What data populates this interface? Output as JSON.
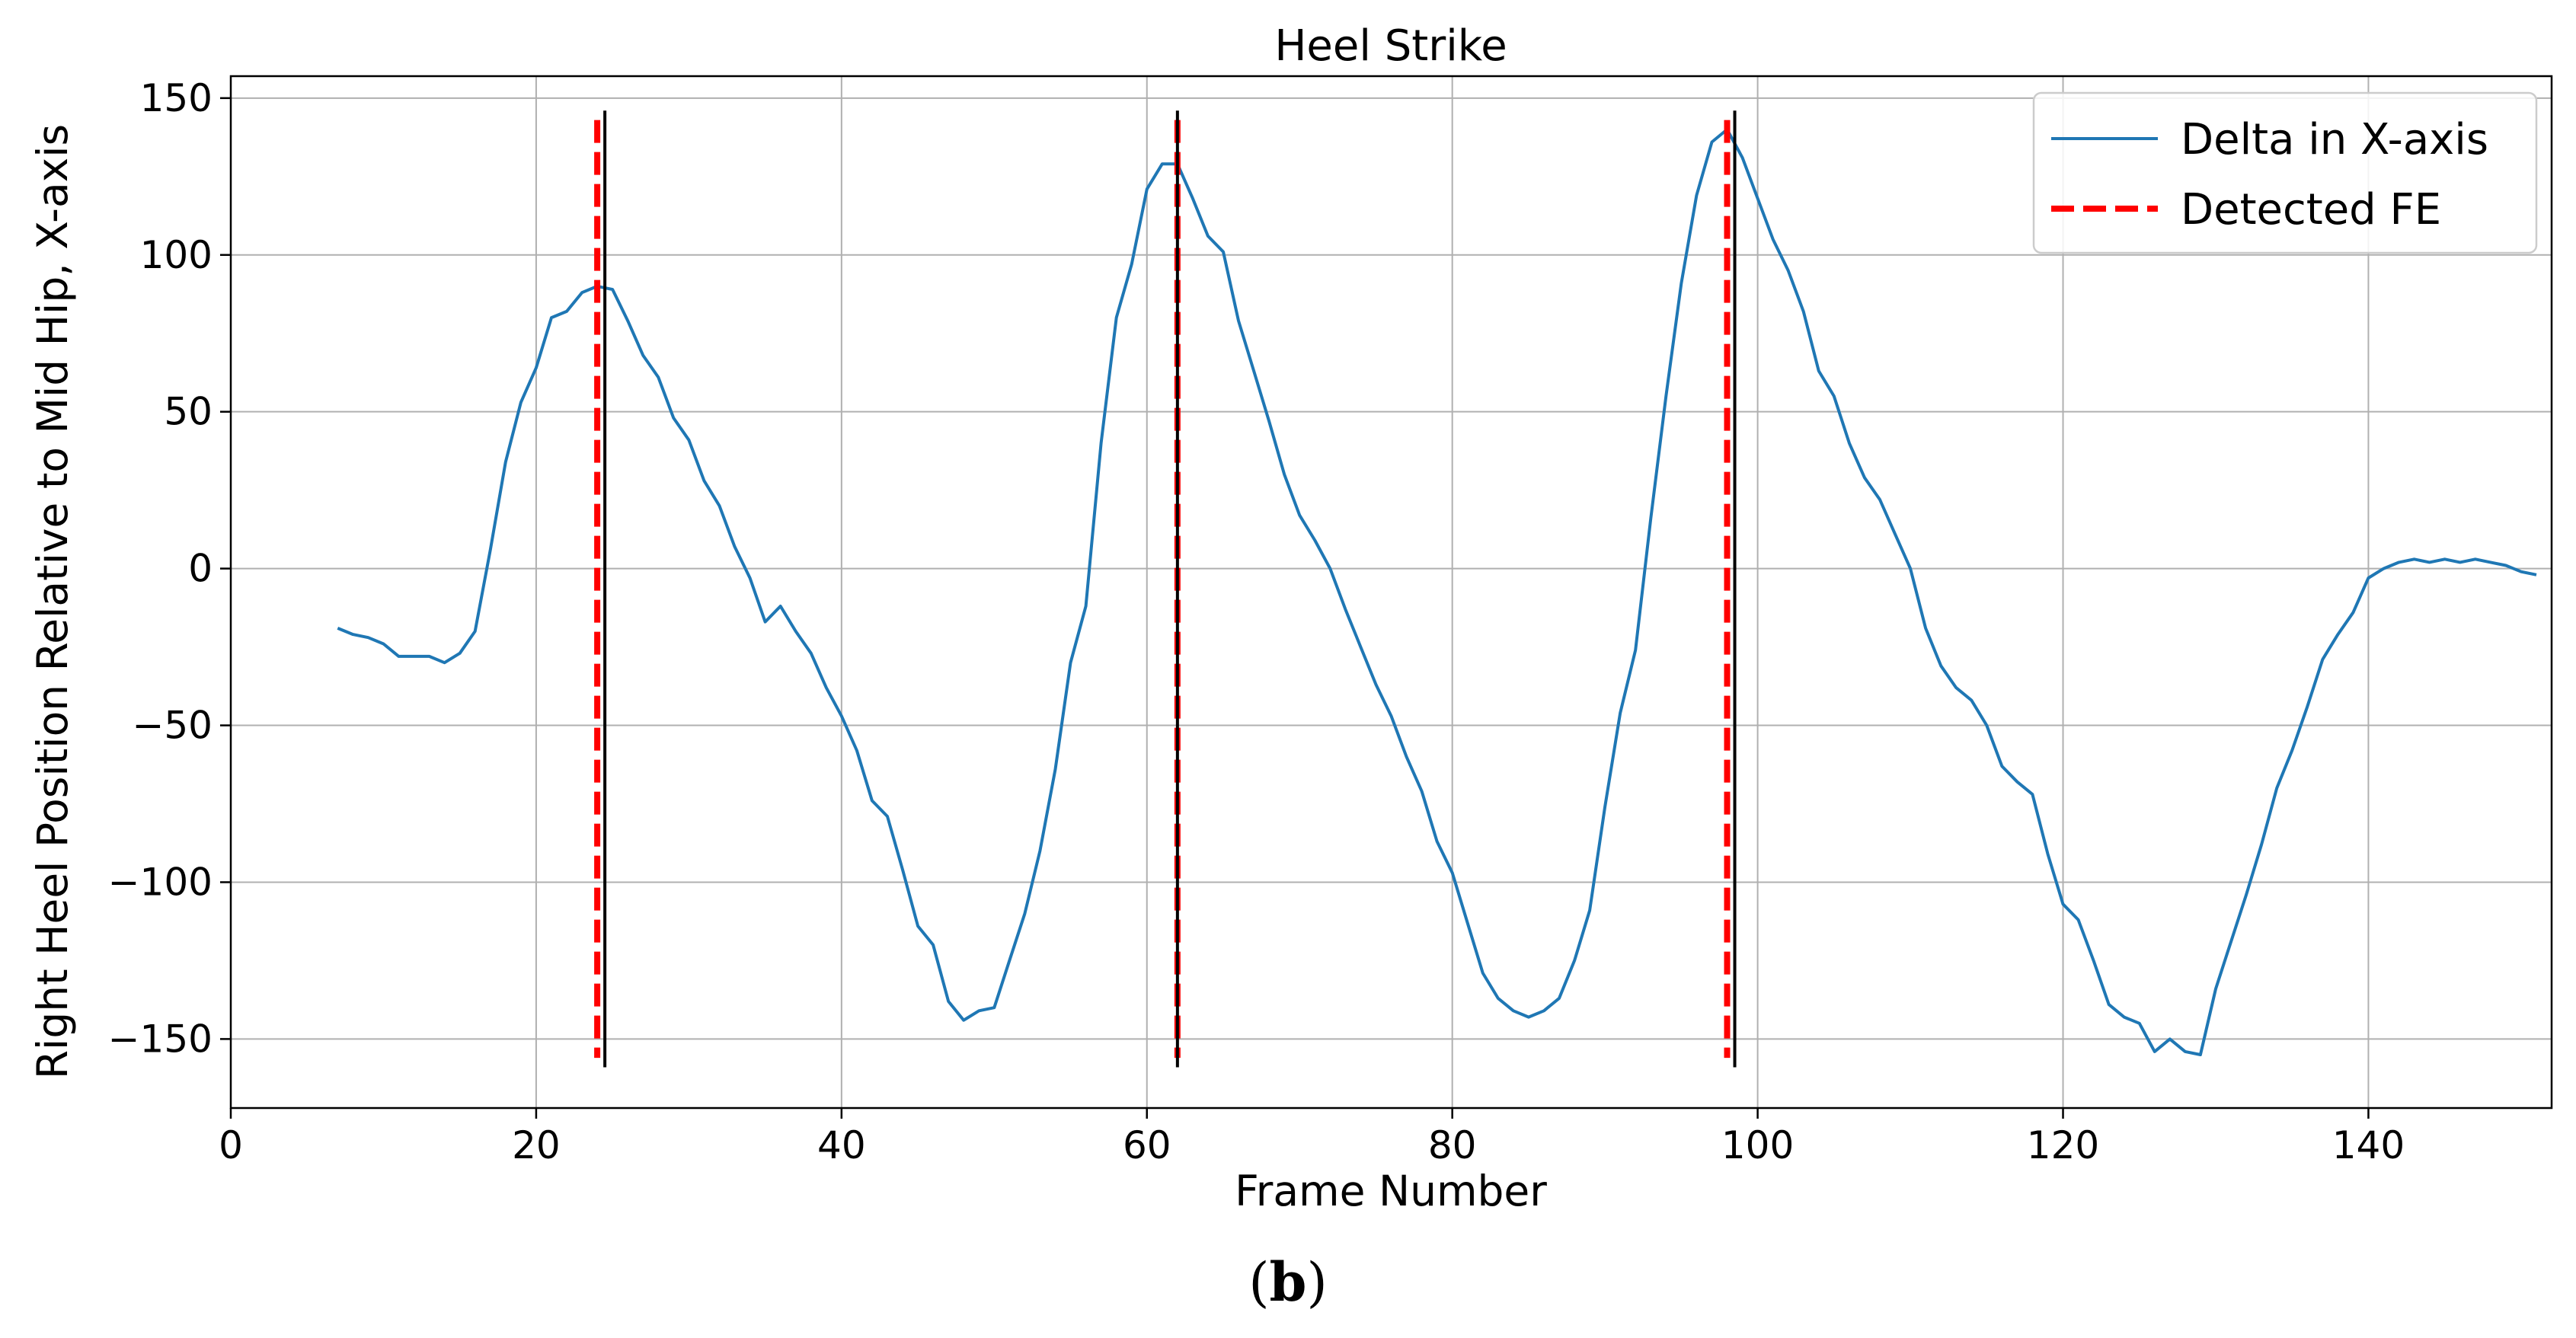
{
  "chart_data": {
    "type": "line",
    "title": "Heel Strike",
    "xlabel": "Frame Number",
    "ylabel": "Right Heel Position Relative to Mid Hip, X-axis",
    "caption_prefix": "(",
    "caption_letter": "b",
    "caption_suffix": ")",
    "xlim": [
      0,
      152
    ],
    "ylim": [
      -172,
      157
    ],
    "xticks": [
      0,
      20,
      40,
      60,
      80,
      100,
      120,
      140
    ],
    "yticks": [
      150,
      100,
      50,
      0,
      -50,
      -100,
      -150
    ],
    "ytick_labels": [
      "150",
      "100",
      "50",
      "0",
      "−50",
      "−100",
      "−150"
    ],
    "grid": true,
    "legend_placement": "top-right",
    "colors": {
      "series": "#1f77b4",
      "detected": "#ff0000",
      "reference": "#000000"
    },
    "series": [
      {
        "name": "Delta in X-axis",
        "x": [
          7,
          8,
          9,
          10,
          11,
          12,
          13,
          14,
          15,
          16,
          17,
          18,
          19,
          20,
          21,
          22,
          23,
          24,
          25,
          26,
          27,
          28,
          29,
          30,
          31,
          32,
          33,
          34,
          35,
          36,
          37,
          38,
          39,
          40,
          41,
          42,
          43,
          44,
          45,
          46,
          47,
          48,
          49,
          50,
          51,
          52,
          53,
          54,
          55,
          56,
          57,
          58,
          59,
          60,
          61,
          62,
          63,
          64,
          65,
          66,
          67,
          68,
          69,
          70,
          71,
          72,
          73,
          74,
          75,
          76,
          77,
          78,
          79,
          80,
          81,
          82,
          83,
          84,
          85,
          86,
          87,
          88,
          89,
          90,
          91,
          92,
          93,
          94,
          95,
          96,
          97,
          98,
          99,
          100,
          101,
          102,
          103,
          104,
          105,
          106,
          107,
          108,
          109,
          110,
          111,
          112,
          113,
          114,
          115,
          116,
          117,
          118,
          119,
          120,
          121,
          122,
          123,
          124,
          125,
          126,
          127,
          128,
          129,
          130,
          131,
          132,
          133,
          134,
          135,
          136,
          137,
          138,
          139,
          140,
          141,
          142,
          143,
          144,
          145,
          146,
          147,
          148,
          149,
          150,
          151
        ],
        "y": [
          -19,
          -21,
          -22,
          -24,
          -28,
          -28,
          -28,
          -30,
          -27,
          -20,
          6,
          34,
          53,
          64,
          80,
          82,
          88,
          90,
          89,
          79,
          68,
          61,
          48,
          41,
          28,
          20,
          7,
          -3,
          -17,
          -12,
          -20,
          -27,
          -38,
          -47,
          -58,
          -74,
          -79,
          -96,
          -114,
          -120,
          -138,
          -144,
          -141,
          -140,
          -125,
          -110,
          -90,
          -64,
          -30,
          -12,
          40,
          80,
          97,
          121,
          129,
          129,
          118,
          106,
          101,
          79,
          63,
          47,
          30,
          17,
          9,
          0,
          -13,
          -25,
          -37,
          -47,
          -60,
          -71,
          -87,
          -97,
          -113,
          -129,
          -137,
          -141,
          -143,
          -141,
          -137,
          -125,
          -109,
          -76,
          -46,
          -26,
          16,
          55,
          91,
          119,
          136,
          140,
          131,
          118,
          105,
          95,
          82,
          63,
          55,
          40,
          29,
          22,
          11,
          0,
          -19,
          -31,
          -38,
          -42,
          -50,
          -63,
          -68,
          -72,
          -91,
          -107,
          -112,
          -125,
          -139,
          -143,
          -145,
          -154,
          -150,
          -154,
          -155,
          -134,
          -119,
          -104,
          -88,
          -70,
          -58,
          -44,
          -29,
          -21,
          -14,
          -3,
          0,
          2,
          3,
          2,
          3,
          2,
          3,
          2,
          1,
          -1,
          -2
        ]
      },
      {
        "name": "Detected FE",
        "x_values": [
          24,
          62,
          98
        ]
      }
    ],
    "reference_lines_x": [
      24.5,
      62,
      98.5
    ]
  }
}
